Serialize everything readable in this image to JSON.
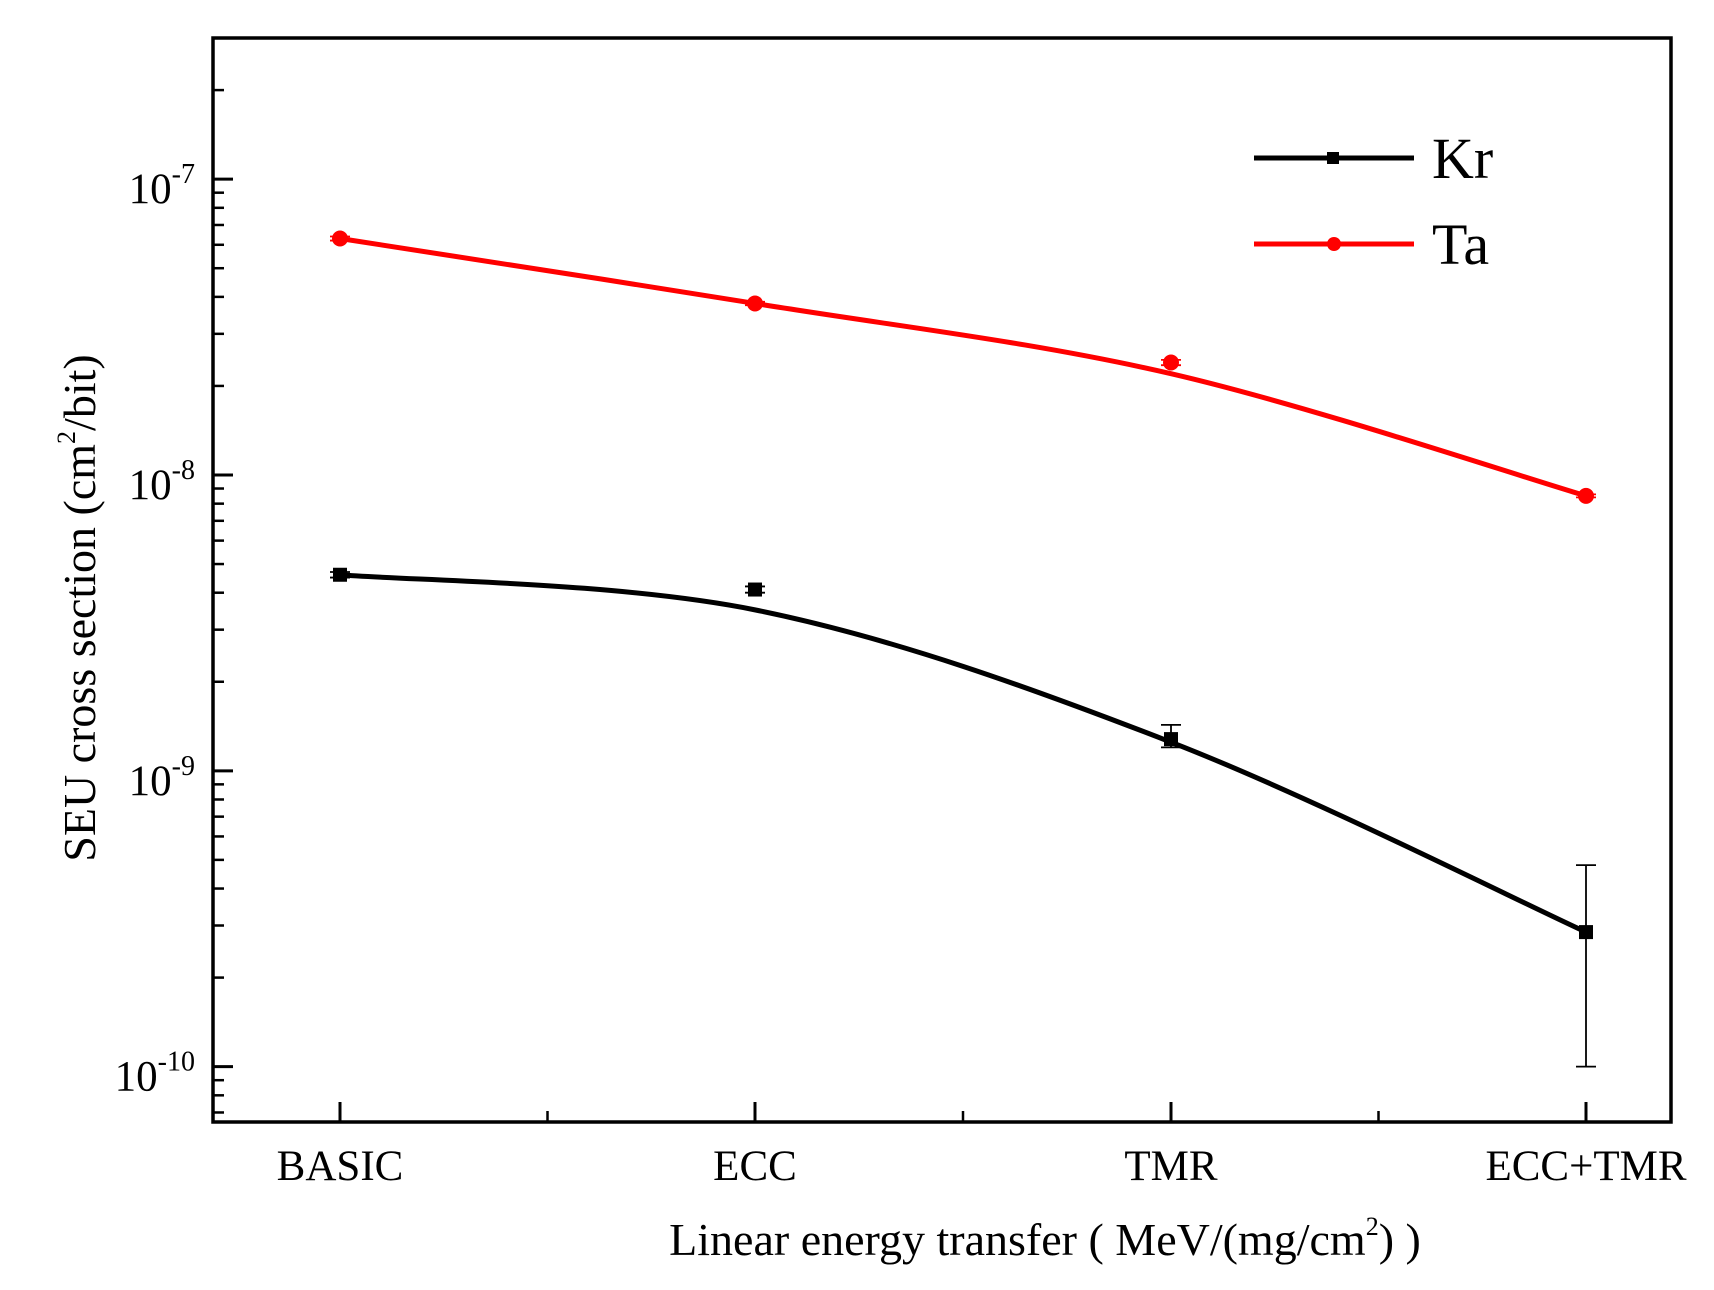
{
  "chart_data": {
    "type": "line",
    "categories": [
      "BASIC",
      "ECC",
      "TMR",
      "ECC+TMR"
    ],
    "yscale": "log",
    "ylim": [
      6.5e-11,
      3e-07
    ],
    "ytick_labels": [
      {
        "value": 1e-10,
        "base": "10",
        "exp": "-10"
      },
      {
        "value": 1e-09,
        "base": "10",
        "exp": "-9"
      },
      {
        "value": 1e-08,
        "base": "10",
        "exp": "-8"
      },
      {
        "value": 1e-07,
        "base": "10",
        "exp": "-7"
      }
    ],
    "xlabel": {
      "main": "Linear energy transfer ( MeV/(mg/cm",
      "sup": "2",
      "tail": ") )"
    },
    "ylabel": {
      "main": "SEU cross section (cm",
      "sup": "2",
      "tail": "/bit)"
    },
    "series": [
      {
        "name": "Kr",
        "color": "#000000",
        "marker": "square",
        "values": [
          4.6e-09,
          4.1e-09,
          1.28e-09,
          2.85e-10
        ],
        "err_low": [
          1e-10,
          1e-10,
          8e-11,
          1.85e-10
        ],
        "err_high": [
          1e-10,
          1e-10,
          1.5e-10,
          1.95e-10
        ],
        "fit": [
          4.6e-09,
          3.5e-09,
          1.25e-09,
          2.85e-10
        ]
      },
      {
        "name": "Ta",
        "color": "#ff0000",
        "marker": "circle",
        "values": [
          6.3e-08,
          3.8e-08,
          2.4e-08,
          8.5e-09
        ],
        "err_low": [
          1e-09,
          5e-10,
          5e-10,
          1e-10
        ],
        "err_high": [
          1e-09,
          5e-10,
          5e-10,
          1e-10
        ],
        "fit": [
          6.3e-08,
          3.8e-08,
          2.2e-08,
          8.5e-09
        ]
      }
    ],
    "legend": {
      "position": "top-right"
    }
  }
}
